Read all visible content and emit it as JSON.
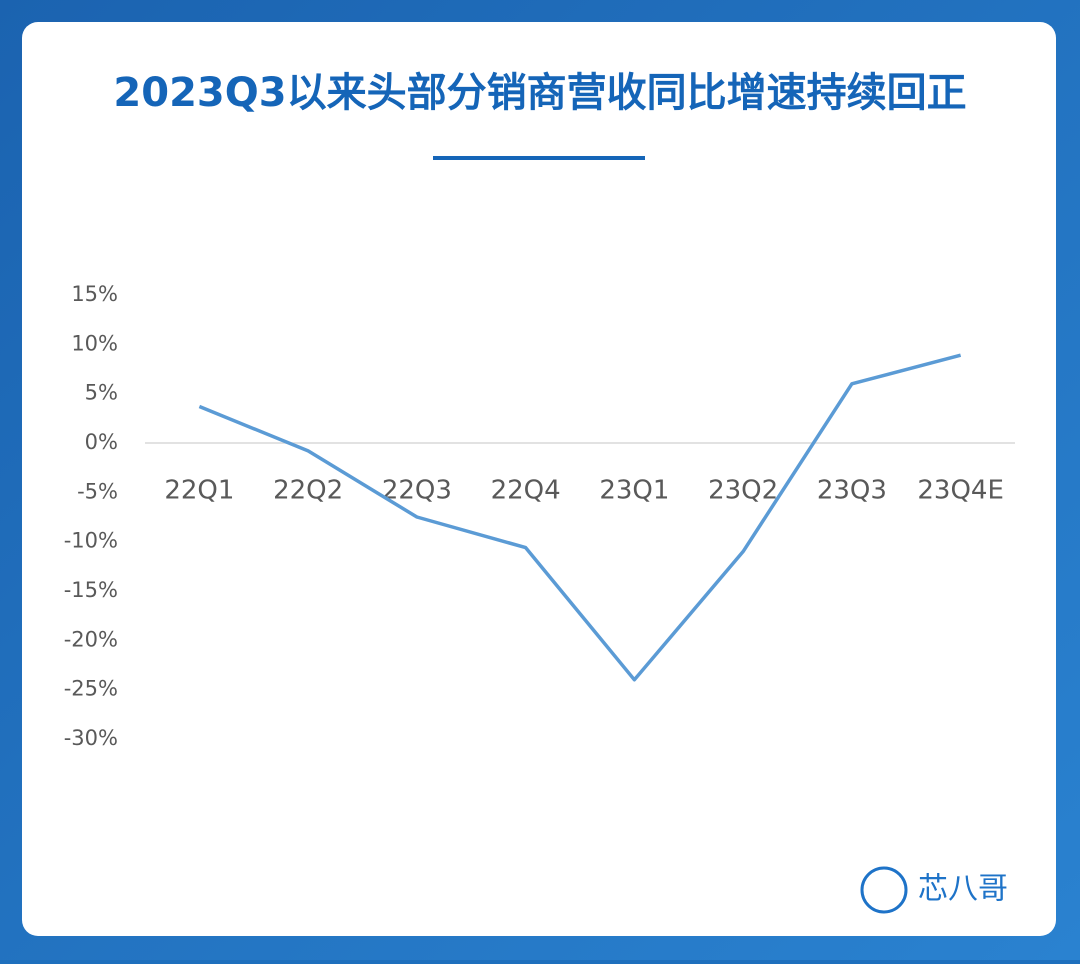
{
  "chart_data": {
    "type": "line",
    "title": "2023Q3以来头部分销商营收同比增速持续回正",
    "brand": "芯八哥",
    "categories": [
      "22Q1",
      "22Q2",
      "22Q3",
      "22Q4",
      "23Q1",
      "23Q2",
      "23Q3",
      "23Q4E"
    ],
    "series": [
      {
        "color": "#5b9bd5",
        "values": [
          3.7,
          -0.8,
          -7.5,
          -10.6,
          -24,
          -11,
          6,
          8.9
        ]
      }
    ],
    "ylim": [
      -30,
      15
    ],
    "yticks": [
      {
        "value": 15,
        "label": "15%"
      },
      {
        "value": 10,
        "label": "10%"
      },
      {
        "value": 5,
        "label": "5%"
      },
      {
        "value": 0,
        "label": "0%"
      },
      {
        "value": -5,
        "label": "-5%"
      },
      {
        "value": -10,
        "label": "-10%"
      },
      {
        "value": -15,
        "label": "-15%"
      },
      {
        "value": -20,
        "label": "-20%"
      },
      {
        "value": -25,
        "label": "-25%"
      },
      {
        "value": -30,
        "label": "-30%"
      }
    ],
    "zero_line": true
  }
}
